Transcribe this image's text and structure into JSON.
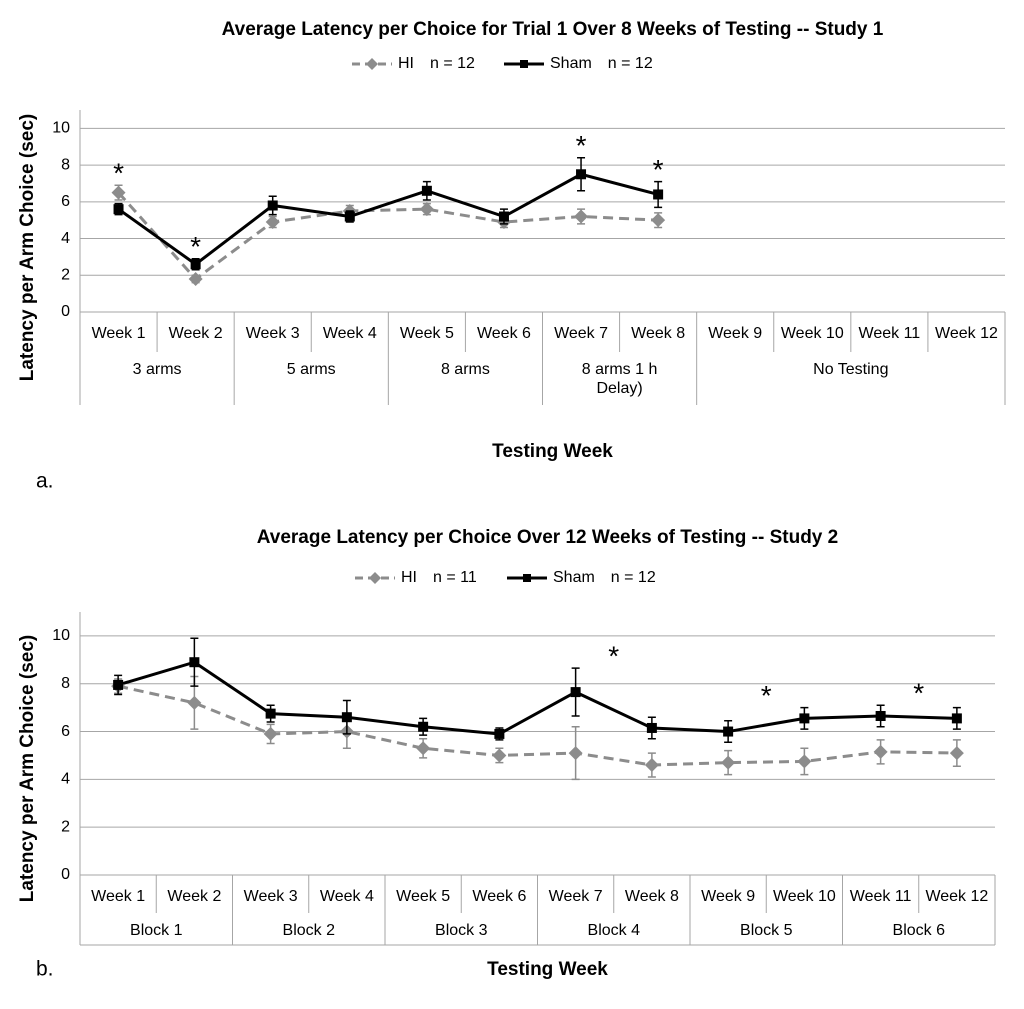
{
  "chart_data": [
    {
      "type": "line",
      "title": "Average Latency per Choice for Trial 1 Over 8 Weeks of Testing -- Study 1",
      "panel_label": "a.",
      "y_label": "Latency per Arm Choice (sec)",
      "x_label": "Testing Week",
      "categories": [
        "Week 1",
        "Week 2",
        "Week 3",
        "Week 4",
        "Week 5",
        "Week 6",
        "Week 7",
        "Week 8",
        "Week 9",
        "Week 10",
        "Week 11",
        "Week 12"
      ],
      "groups": [
        {
          "label": "3 arms",
          "from": "Week 1",
          "to": "Week 2"
        },
        {
          "label": "5 arms",
          "from": "Week 3",
          "to": "Week 4"
        },
        {
          "label": "8 arms",
          "from": "Week 5",
          "to": "Week 6"
        },
        {
          "label": "8 arms  1 h Delay)",
          "from": "Week 7",
          "to": "Week 8"
        },
        {
          "label": "No Testing",
          "from": "Week 9",
          "to": "Week 12"
        }
      ],
      "series": [
        {
          "name": "HI",
          "n_label": "n = 12",
          "color": "#8c8c8c",
          "line_style": "dashed",
          "marker": "diamond",
          "values": [
            6.5,
            1.8,
            4.9,
            5.5,
            5.6,
            4.9,
            5.2,
            5.0,
            null,
            null,
            null,
            null
          ],
          "errors": [
            0.4,
            0.2,
            0.3,
            0.3,
            0.3,
            0.3,
            0.4,
            0.4,
            null,
            null,
            null,
            null
          ]
        },
        {
          "name": "Sham",
          "n_label": "n = 12",
          "color": "#000000",
          "line_style": "solid",
          "marker": "square",
          "values": [
            5.6,
            2.6,
            5.8,
            5.2,
            6.6,
            5.2,
            7.5,
            6.4,
            null,
            null,
            null,
            null
          ],
          "errors": [
            0.3,
            0.3,
            0.5,
            0.3,
            0.5,
            0.4,
            0.9,
            0.7,
            null,
            null,
            null,
            null
          ]
        }
      ],
      "annotations": [
        {
          "text": "*",
          "at": "Week 1"
        },
        {
          "text": "*",
          "at": "Week 2"
        },
        {
          "text": "*",
          "at": "Week 7"
        },
        {
          "text": "*",
          "at": "Week 8"
        }
      ],
      "ylim": [
        0,
        11
      ],
      "yticks": [
        0,
        2,
        4,
        6,
        8,
        10
      ],
      "grid": true
    },
    {
      "type": "line",
      "title": "Average Latency per Choice Over 12 Weeks of Testing -- Study 2",
      "panel_label": "b.",
      "y_label": "Latency per Arm Choice (sec)",
      "x_label": "Testing Week",
      "categories": [
        "Week 1",
        "Week 2",
        "Week 3",
        "Week 4",
        "Week 5",
        "Week 6",
        "Week 7",
        "Week 8",
        "Week 9",
        "Week 10",
        "Week 11",
        "Week 12"
      ],
      "groups": [
        {
          "label": "Block 1",
          "from": "Week 1",
          "to": "Week 2"
        },
        {
          "label": "Block 2",
          "from": "Week 3",
          "to": "Week 4"
        },
        {
          "label": "Block 3",
          "from": "Week 5",
          "to": "Week 6"
        },
        {
          "label": "Block 4",
          "from": "Week 7",
          "to": "Week 8"
        },
        {
          "label": "Block 5",
          "from": "Week 9",
          "to": "Week 10"
        },
        {
          "label": "Block 6",
          "from": "Week 11",
          "to": "Week 12"
        }
      ],
      "series": [
        {
          "name": "HI",
          "n_label": "n = 11",
          "color": "#8c8c8c",
          "line_style": "dashed",
          "marker": "diamond",
          "values": [
            7.9,
            7.2,
            5.9,
            6.0,
            5.3,
            5.0,
            5.1,
            4.6,
            4.7,
            4.75,
            5.15,
            5.1
          ],
          "errors": [
            0.3,
            1.1,
            0.4,
            0.7,
            0.4,
            0.3,
            1.1,
            0.5,
            0.5,
            0.55,
            0.5,
            0.55
          ]
        },
        {
          "name": "Sham",
          "n_label": "n = 12",
          "color": "#000000",
          "line_style": "solid",
          "marker": "square",
          "values": [
            7.95,
            8.9,
            6.75,
            6.6,
            6.2,
            5.9,
            7.65,
            6.15,
            6.0,
            6.55,
            6.65,
            6.55
          ],
          "errors": [
            0.4,
            1.0,
            0.35,
            0.7,
            0.35,
            0.25,
            1.0,
            0.45,
            0.45,
            0.45,
            0.45,
            0.45
          ]
        }
      ],
      "annotations": [
        {
          "text": "*",
          "at": "Block 4"
        },
        {
          "text": "*",
          "at": "Block 5"
        },
        {
          "text": "*",
          "at": "Block 6"
        }
      ],
      "ylim": [
        0,
        11
      ],
      "yticks": [
        0,
        2,
        4,
        6,
        8,
        10
      ],
      "grid": true
    }
  ]
}
